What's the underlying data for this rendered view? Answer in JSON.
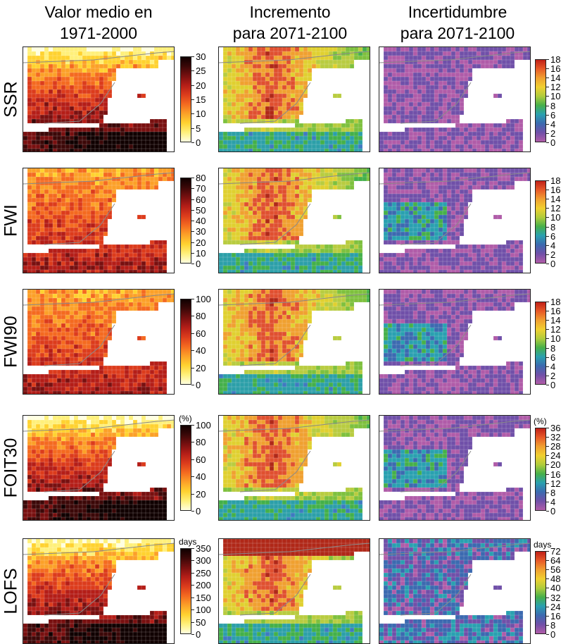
{
  "column_titles": [
    "Valor medio en\n1971-2000",
    "Incremento\npara 2071-2100",
    "Incertidumbre\npara 2071-2100"
  ],
  "rows": [
    {
      "label": "SSR",
      "mean_scale": {
        "ticks": [
          "30",
          "25",
          "20",
          "15",
          "10",
          "5",
          "0"
        ],
        "unit": ""
      },
      "unc_scale": {
        "ticks": [
          "18",
          "16",
          "14",
          "12",
          "10",
          "8",
          "6",
          "4",
          "2",
          "0"
        ],
        "unit": ""
      }
    },
    {
      "label": "FWI",
      "mean_scale": {
        "ticks": [
          "80",
          "70",
          "60",
          "50",
          "40",
          "30",
          "20",
          "10",
          "0"
        ],
        "unit": ""
      },
      "unc_scale": {
        "ticks": [
          "18",
          "16",
          "14",
          "12",
          "10",
          "8",
          "6",
          "4",
          "2",
          "0"
        ],
        "unit": ""
      }
    },
    {
      "label": "FWI90",
      "mean_scale": {
        "ticks": [
          "100",
          "80",
          "60",
          "40",
          "20",
          "0"
        ],
        "unit": ""
      },
      "unc_scale": {
        "ticks": [
          "18",
          "16",
          "14",
          "12",
          "10",
          "8",
          "6",
          "4",
          "2",
          "0"
        ],
        "unit": ""
      }
    },
    {
      "label": "FOIT30",
      "mean_scale": {
        "ticks": [
          "100",
          "80",
          "60",
          "40",
          "20",
          "0"
        ],
        "unit": "(%)"
      },
      "unc_scale": {
        "ticks": [
          "36",
          "32",
          "28",
          "24",
          "20",
          "16",
          "12",
          "8",
          "4",
          "0"
        ],
        "unit": "(%)"
      }
    },
    {
      "label": "LOFS",
      "mean_scale": {
        "ticks": [
          "350",
          "300",
          "250",
          "200",
          "150",
          "100",
          "50",
          "0"
        ],
        "unit": "days"
      },
      "unc_scale": {
        "ticks": [
          "72",
          "64",
          "56",
          "48",
          "40",
          "32",
          "24",
          "16",
          "8",
          "0"
        ],
        "unit": "days"
      }
    }
  ],
  "colors": {
    "mean_ramp": [
      "#ffffe0",
      "#fff07a",
      "#ffd230",
      "#fca028",
      "#f46a20",
      "#dc3c1c",
      "#b41e18",
      "#781010",
      "#3c0808",
      "#100000"
    ],
    "increment_ramp": [
      "#3f7ac0",
      "#2c9fa8",
      "#44b04a",
      "#7ec03e",
      "#b8cc40",
      "#e0d030",
      "#f0a030",
      "#e05030",
      "#b02818"
    ],
    "uncertainty_ramp": [
      "#b05ca8",
      "#7050a8",
      "#3c6ab0",
      "#2aa0b0",
      "#46b04a",
      "#b0cc3c",
      "#f0d030",
      "#f0a030",
      "#e85a28",
      "#c02018"
    ],
    "sea": "#ffffff",
    "coastline": "#8a8a8a"
  }
}
